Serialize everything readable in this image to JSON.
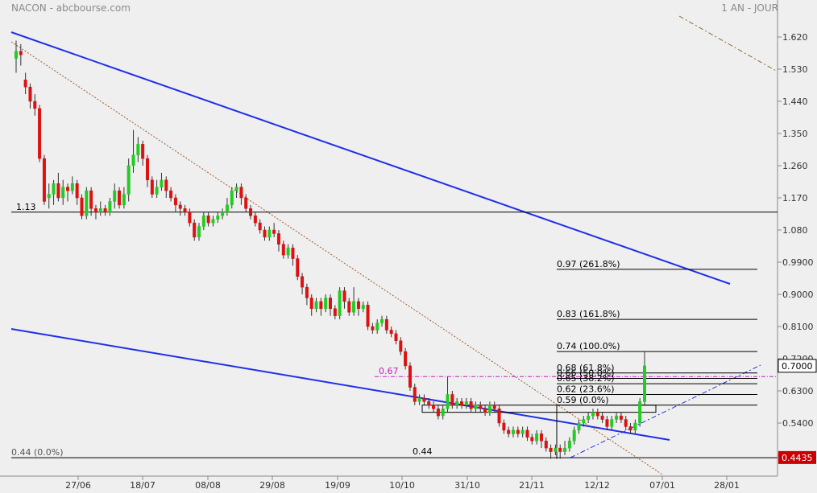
{
  "header": {
    "left": "NACON - abcbourse.com",
    "right": "1 AN - JOUR"
  },
  "chart_data": {
    "type": "candlestick",
    "y_ticks": [
      "1.620",
      "1.530",
      "1.440",
      "1.350",
      "1.260",
      "1.170",
      "1.080",
      "0.9900",
      "0.9000",
      "0.8100",
      "0.7200",
      "0.6300",
      "0.5400",
      "0.4500"
    ],
    "y_tick_values": [
      1.62,
      1.53,
      1.44,
      1.35,
      1.26,
      1.17,
      1.08,
      0.99,
      0.9,
      0.81,
      0.72,
      0.63,
      0.54,
      0.45
    ],
    "x_ticks": [
      "27/06",
      "18/07",
      "08/08",
      "29/08",
      "19/09",
      "10/10",
      "31/10",
      "21/11",
      "12/12",
      "07/01",
      "28/01"
    ],
    "last_price": "0.7000",
    "low_marker": "0.4435",
    "levels": [
      {
        "label": "1.13",
        "value": 1.13
      },
      {
        "label": "0.44",
        "value": 0.443
      },
      {
        "label": "0.44  (0.0%)",
        "value": 0.443
      },
      {
        "label": "0.67",
        "value": 0.67
      }
    ],
    "fib_levels": [
      {
        "label": "0.97  (261.8%)",
        "value": 0.97
      },
      {
        "label": "0.83  (161.8%)",
        "value": 0.83
      },
      {
        "label": "0.74  (100.0%)",
        "value": 0.74
      },
      {
        "label": "0.68  (61.8%)",
        "value": 0.68
      },
      {
        "label": "0.66  (50.0%)",
        "value": 0.665
      },
      {
        "label": "0.65  (38.2%)",
        "value": 0.65
      },
      {
        "label": "0.62  (23.6%)",
        "value": 0.62
      },
      {
        "label": "0.59  (0.0%)",
        "value": 0.59
      }
    ],
    "candles": [
      [
        1.56,
        1.58,
        1.61,
        1.52
      ],
      [
        1.58,
        1.57,
        1.6,
        1.54
      ],
      [
        1.5,
        1.48,
        1.52,
        1.46
      ],
      [
        1.48,
        1.44,
        1.49,
        1.42
      ],
      [
        1.44,
        1.42,
        1.46,
        1.4
      ],
      [
        1.42,
        1.28,
        1.43,
        1.27
      ],
      [
        1.28,
        1.16,
        1.29,
        1.15
      ],
      [
        1.17,
        1.18,
        1.21,
        1.14
      ],
      [
        1.18,
        1.21,
        1.22,
        1.15
      ],
      [
        1.21,
        1.17,
        1.24,
        1.16
      ],
      [
        1.17,
        1.2,
        1.22,
        1.15
      ],
      [
        1.2,
        1.19,
        1.21,
        1.16
      ],
      [
        1.19,
        1.21,
        1.23,
        1.18
      ],
      [
        1.21,
        1.17,
        1.22,
        1.15
      ],
      [
        1.17,
        1.12,
        1.18,
        1.11
      ],
      [
        1.12,
        1.19,
        1.2,
        1.11
      ],
      [
        1.19,
        1.14,
        1.2,
        1.12
      ],
      [
        1.14,
        1.13,
        1.15,
        1.11
      ],
      [
        1.13,
        1.14,
        1.16,
        1.12
      ],
      [
        1.14,
        1.13,
        1.15,
        1.12
      ],
      [
        1.13,
        1.16,
        1.17,
        1.12
      ],
      [
        1.16,
        1.19,
        1.21,
        1.14
      ],
      [
        1.19,
        1.15,
        1.2,
        1.14
      ],
      [
        1.15,
        1.18,
        1.2,
        1.14
      ],
      [
        1.18,
        1.26,
        1.28,
        1.16
      ],
      [
        1.26,
        1.29,
        1.36,
        1.24
      ],
      [
        1.29,
        1.32,
        1.34,
        1.27
      ],
      [
        1.32,
        1.28,
        1.33,
        1.26
      ],
      [
        1.28,
        1.22,
        1.29,
        1.2
      ],
      [
        1.22,
        1.18,
        1.23,
        1.17
      ],
      [
        1.18,
        1.2,
        1.22,
        1.17
      ],
      [
        1.2,
        1.22,
        1.24,
        1.19
      ],
      [
        1.22,
        1.19,
        1.23,
        1.17
      ],
      [
        1.19,
        1.17,
        1.2,
        1.16
      ],
      [
        1.17,
        1.15,
        1.18,
        1.13
      ],
      [
        1.15,
        1.14,
        1.16,
        1.12
      ],
      [
        1.14,
        1.13,
        1.15,
        1.12
      ],
      [
        1.13,
        1.1,
        1.14,
        1.09
      ],
      [
        1.1,
        1.06,
        1.11,
        1.05
      ],
      [
        1.06,
        1.09,
        1.1,
        1.05
      ],
      [
        1.09,
        1.12,
        1.13,
        1.08
      ],
      [
        1.12,
        1.1,
        1.13,
        1.09
      ],
      [
        1.1,
        1.11,
        1.12,
        1.09
      ],
      [
        1.11,
        1.12,
        1.13,
        1.1
      ],
      [
        1.12,
        1.13,
        1.14,
        1.11
      ],
      [
        1.13,
        1.15,
        1.17,
        1.12
      ],
      [
        1.15,
        1.19,
        1.2,
        1.14
      ],
      [
        1.19,
        1.2,
        1.21,
        1.17
      ],
      [
        1.2,
        1.17,
        1.21,
        1.15
      ],
      [
        1.17,
        1.14,
        1.18,
        1.13
      ],
      [
        1.14,
        1.12,
        1.15,
        1.11
      ],
      [
        1.12,
        1.1,
        1.13,
        1.09
      ],
      [
        1.1,
        1.08,
        1.11,
        1.07
      ],
      [
        1.08,
        1.06,
        1.09,
        1.05
      ],
      [
        1.06,
        1.08,
        1.09,
        1.05
      ],
      [
        1.08,
        1.07,
        1.1,
        1.06
      ],
      [
        1.07,
        1.04,
        1.08,
        1.02
      ],
      [
        1.04,
        1.01,
        1.05,
        1.0
      ],
      [
        1.01,
        1.03,
        1.04,
        1.0
      ],
      [
        1.03,
        1.0,
        1.04,
        0.98
      ],
      [
        1.0,
        0.95,
        1.01,
        0.94
      ],
      [
        0.95,
        0.92,
        0.96,
        0.9
      ],
      [
        0.92,
        0.89,
        0.93,
        0.87
      ],
      [
        0.89,
        0.86,
        0.9,
        0.84
      ],
      [
        0.86,
        0.88,
        0.89,
        0.85
      ],
      [
        0.88,
        0.86,
        0.89,
        0.84
      ],
      [
        0.86,
        0.89,
        0.9,
        0.85
      ],
      [
        0.89,
        0.86,
        0.9,
        0.84
      ],
      [
        0.86,
        0.84,
        0.87,
        0.83
      ],
      [
        0.84,
        0.91,
        0.92,
        0.83
      ],
      [
        0.91,
        0.88,
        0.92,
        0.86
      ],
      [
        0.88,
        0.85,
        0.89,
        0.84
      ],
      [
        0.85,
        0.88,
        0.92,
        0.84
      ],
      [
        0.88,
        0.86,
        0.89,
        0.84
      ],
      [
        0.86,
        0.87,
        0.88,
        0.85
      ],
      [
        0.87,
        0.81,
        0.88,
        0.8
      ],
      [
        0.81,
        0.8,
        0.82,
        0.79
      ],
      [
        0.8,
        0.82,
        0.83,
        0.79
      ],
      [
        0.82,
        0.83,
        0.84,
        0.81
      ],
      [
        0.83,
        0.8,
        0.84,
        0.79
      ],
      [
        0.8,
        0.79,
        0.81,
        0.78
      ],
      [
        0.79,
        0.77,
        0.8,
        0.76
      ],
      [
        0.77,
        0.74,
        0.78,
        0.73
      ],
      [
        0.74,
        0.7,
        0.75,
        0.69
      ],
      [
        0.7,
        0.64,
        0.71,
        0.63
      ],
      [
        0.64,
        0.6,
        0.65,
        0.59
      ],
      [
        0.6,
        0.61,
        0.62,
        0.59
      ],
      [
        0.61,
        0.6,
        0.62,
        0.59
      ],
      [
        0.6,
        0.59,
        0.61,
        0.58
      ],
      [
        0.59,
        0.58,
        0.6,
        0.57
      ],
      [
        0.58,
        0.56,
        0.59,
        0.55
      ],
      [
        0.56,
        0.58,
        0.59,
        0.55
      ],
      [
        0.58,
        0.62,
        0.67,
        0.57
      ],
      [
        0.62,
        0.59,
        0.63,
        0.58
      ],
      [
        0.59,
        0.6,
        0.61,
        0.58
      ],
      [
        0.6,
        0.59,
        0.61,
        0.58
      ],
      [
        0.59,
        0.6,
        0.61,
        0.58
      ],
      [
        0.6,
        0.58,
        0.61,
        0.57
      ],
      [
        0.58,
        0.59,
        0.6,
        0.57
      ],
      [
        0.59,
        0.58,
        0.6,
        0.57
      ],
      [
        0.58,
        0.57,
        0.59,
        0.56
      ],
      [
        0.57,
        0.59,
        0.6,
        0.56
      ],
      [
        0.59,
        0.58,
        0.6,
        0.57
      ],
      [
        0.58,
        0.54,
        0.59,
        0.53
      ],
      [
        0.54,
        0.52,
        0.55,
        0.51
      ],
      [
        0.52,
        0.51,
        0.53,
        0.5
      ],
      [
        0.51,
        0.52,
        0.53,
        0.5
      ],
      [
        0.52,
        0.51,
        0.53,
        0.5
      ],
      [
        0.51,
        0.52,
        0.53,
        0.5
      ],
      [
        0.52,
        0.5,
        0.53,
        0.49
      ],
      [
        0.5,
        0.49,
        0.51,
        0.48
      ],
      [
        0.49,
        0.51,
        0.52,
        0.48
      ],
      [
        0.51,
        0.49,
        0.52,
        0.47
      ],
      [
        0.49,
        0.47,
        0.5,
        0.46
      ],
      [
        0.47,
        0.46,
        0.48,
        0.44
      ],
      [
        0.46,
        0.47,
        0.48,
        0.45
      ],
      [
        0.47,
        0.46,
        0.48,
        0.44
      ],
      [
        0.46,
        0.47,
        0.49,
        0.45
      ],
      [
        0.47,
        0.49,
        0.5,
        0.46
      ],
      [
        0.49,
        0.52,
        0.53,
        0.48
      ],
      [
        0.52,
        0.54,
        0.55,
        0.51
      ],
      [
        0.54,
        0.55,
        0.56,
        0.53
      ],
      [
        0.55,
        0.56,
        0.57,
        0.54
      ],
      [
        0.56,
        0.57,
        0.58,
        0.55
      ],
      [
        0.57,
        0.56,
        0.58,
        0.55
      ],
      [
        0.56,
        0.55,
        0.57,
        0.54
      ],
      [
        0.55,
        0.53,
        0.56,
        0.52
      ],
      [
        0.53,
        0.55,
        0.56,
        0.52
      ],
      [
        0.55,
        0.56,
        0.57,
        0.54
      ],
      [
        0.56,
        0.55,
        0.57,
        0.54
      ],
      [
        0.55,
        0.53,
        0.56,
        0.52
      ],
      [
        0.53,
        0.52,
        0.54,
        0.51
      ],
      [
        0.52,
        0.54,
        0.55,
        0.51
      ],
      [
        0.54,
        0.6,
        0.61,
        0.53
      ],
      [
        0.6,
        0.7,
        0.74,
        0.59
      ]
    ]
  }
}
